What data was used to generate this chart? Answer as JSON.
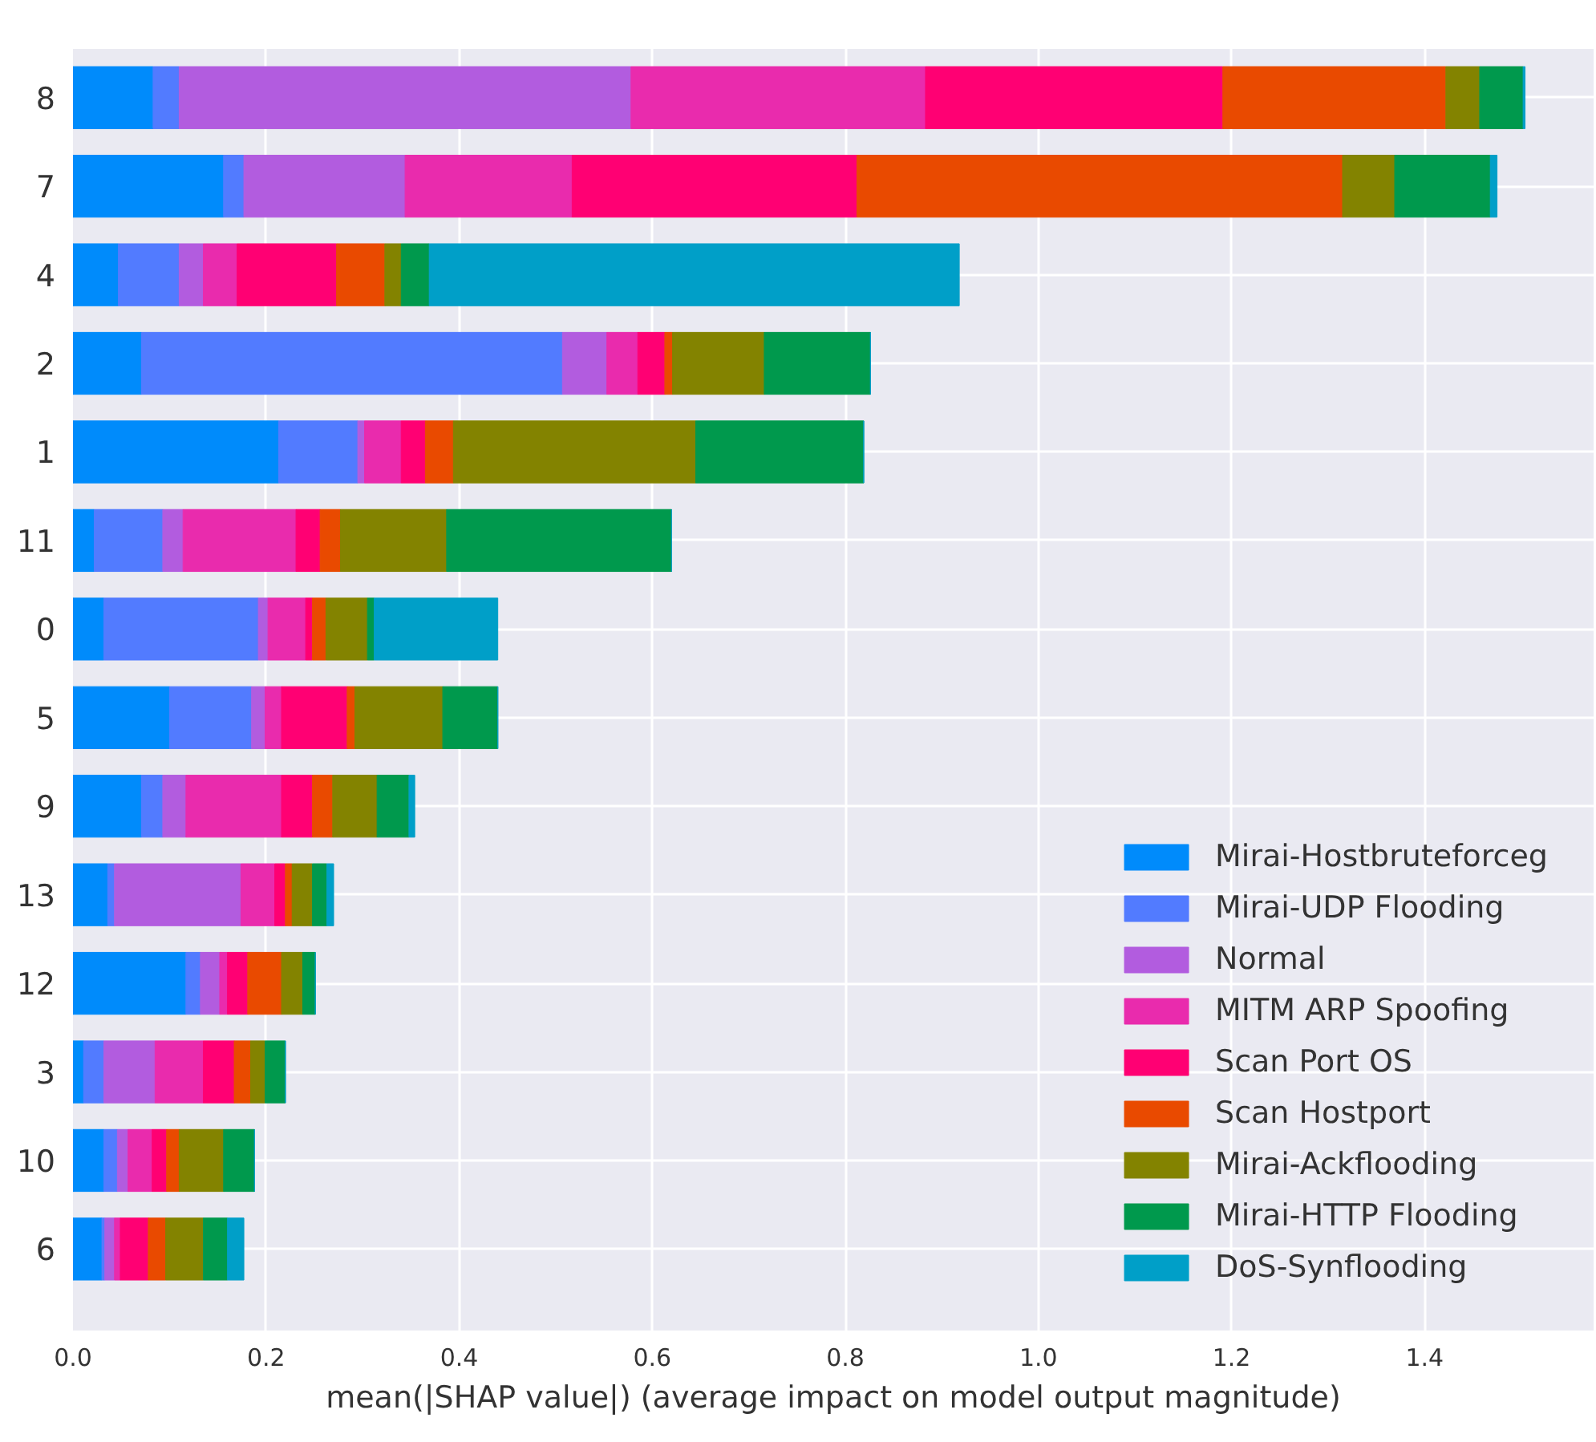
{
  "chart_data": {
    "type": "bar",
    "orientation": "horizontal",
    "stacked": true,
    "xlabel": "mean(|SHAP value|) (average impact on model output magnitude)",
    "categories": [
      "8",
      "7",
      "4",
      "2",
      "1",
      "11",
      "0",
      "5",
      "9",
      "13",
      "12",
      "3",
      "10",
      "6"
    ],
    "xlim": [
      0,
      1.575
    ],
    "xticks": [
      {
        "value": 0,
        "label": "0.0"
      },
      {
        "value": 0.2,
        "label": "0.2"
      },
      {
        "value": 0.4,
        "label": "0.4"
      },
      {
        "value": 0.6,
        "label": "0.6"
      },
      {
        "value": 0.8,
        "label": "0.8"
      },
      {
        "value": 1.0,
        "label": "1.0"
      },
      {
        "value": 1.2,
        "label": "1.2"
      },
      {
        "value": 1.4,
        "label": "1.4"
      }
    ],
    "grid": true,
    "legend": "bottom right",
    "series": [
      {
        "name": "Mirai-Hostbruteforceg",
        "color": "#008bfb",
        "values": [
          0.083,
          0.156,
          0.047,
          0.071,
          0.213,
          0.022,
          0.032,
          0.1,
          0.071,
          0.036,
          0.117,
          0.011,
          0.032,
          0.03
        ]
      },
      {
        "name": "Mirai-UDP Flooding",
        "color": "#527bff",
        "values": [
          0.027,
          0.021,
          0.063,
          0.436,
          0.082,
          0.071,
          0.16,
          0.085,
          0.022,
          0.007,
          0.015,
          0.021,
          0.014,
          0.003
        ]
      },
      {
        "name": "Normal",
        "color": "#b25cdf",
        "values": [
          0.468,
          0.167,
          0.025,
          0.046,
          0.007,
          0.021,
          0.01,
          0.014,
          0.024,
          0.131,
          0.02,
          0.053,
          0.011,
          0.01
        ]
      },
      {
        "name": "MITM ARP Spoofing",
        "color": "#e92bad",
        "values": [
          0.305,
          0.173,
          0.035,
          0.032,
          0.038,
          0.117,
          0.039,
          0.017,
          0.099,
          0.035,
          0.008,
          0.05,
          0.025,
          0.006
        ]
      },
      {
        "name": "Scan Port OS",
        "color": "#ff0073",
        "values": [
          0.308,
          0.295,
          0.103,
          0.028,
          0.025,
          0.025,
          0.007,
          0.068,
          0.032,
          0.011,
          0.021,
          0.032,
          0.015,
          0.029
        ]
      },
      {
        "name": "Scan Hostport",
        "color": "#e94a00",
        "values": [
          0.231,
          0.503,
          0.05,
          0.008,
          0.029,
          0.021,
          0.014,
          0.008,
          0.021,
          0.007,
          0.035,
          0.017,
          0.013,
          0.018
        ]
      },
      {
        "name": "Mirai-Ackflooding",
        "color": "#838300",
        "values": [
          0.035,
          0.054,
          0.017,
          0.095,
          0.251,
          0.11,
          0.043,
          0.091,
          0.046,
          0.021,
          0.022,
          0.015,
          0.046,
          0.039
        ]
      },
      {
        "name": "Mirai-HTTP Flooding",
        "color": "#00994d",
        "values": [
          0.045,
          0.099,
          0.029,
          0.11,
          0.174,
          0.233,
          0.007,
          0.057,
          0.033,
          0.015,
          0.013,
          0.021,
          0.032,
          0.025
        ]
      },
      {
        "name": "DoS-Synflooding",
        "color": "#009fc8",
        "values": [
          0.002,
          0.007,
          0.549,
          0,
          0,
          0,
          0.128,
          0,
          0.006,
          0.007,
          0,
          0,
          0,
          0.017
        ]
      }
    ]
  }
}
